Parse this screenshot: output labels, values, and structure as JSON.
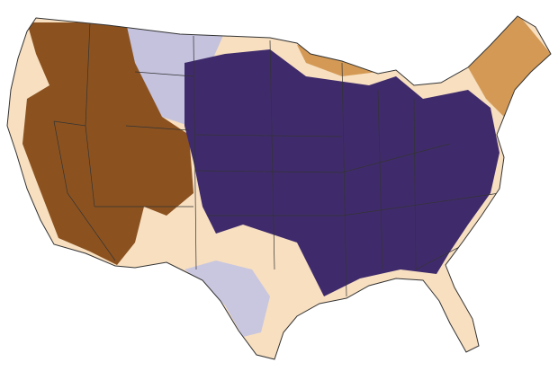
{
  "map": {
    "colors": {
      "base": "#f7dfc0",
      "west": "#8b5220",
      "east": "#3f2b6b",
      "south": "#c9c6df",
      "north": "#c4c2dd",
      "northeast": "#d49a55",
      "border": "#333333"
    }
  }
}
